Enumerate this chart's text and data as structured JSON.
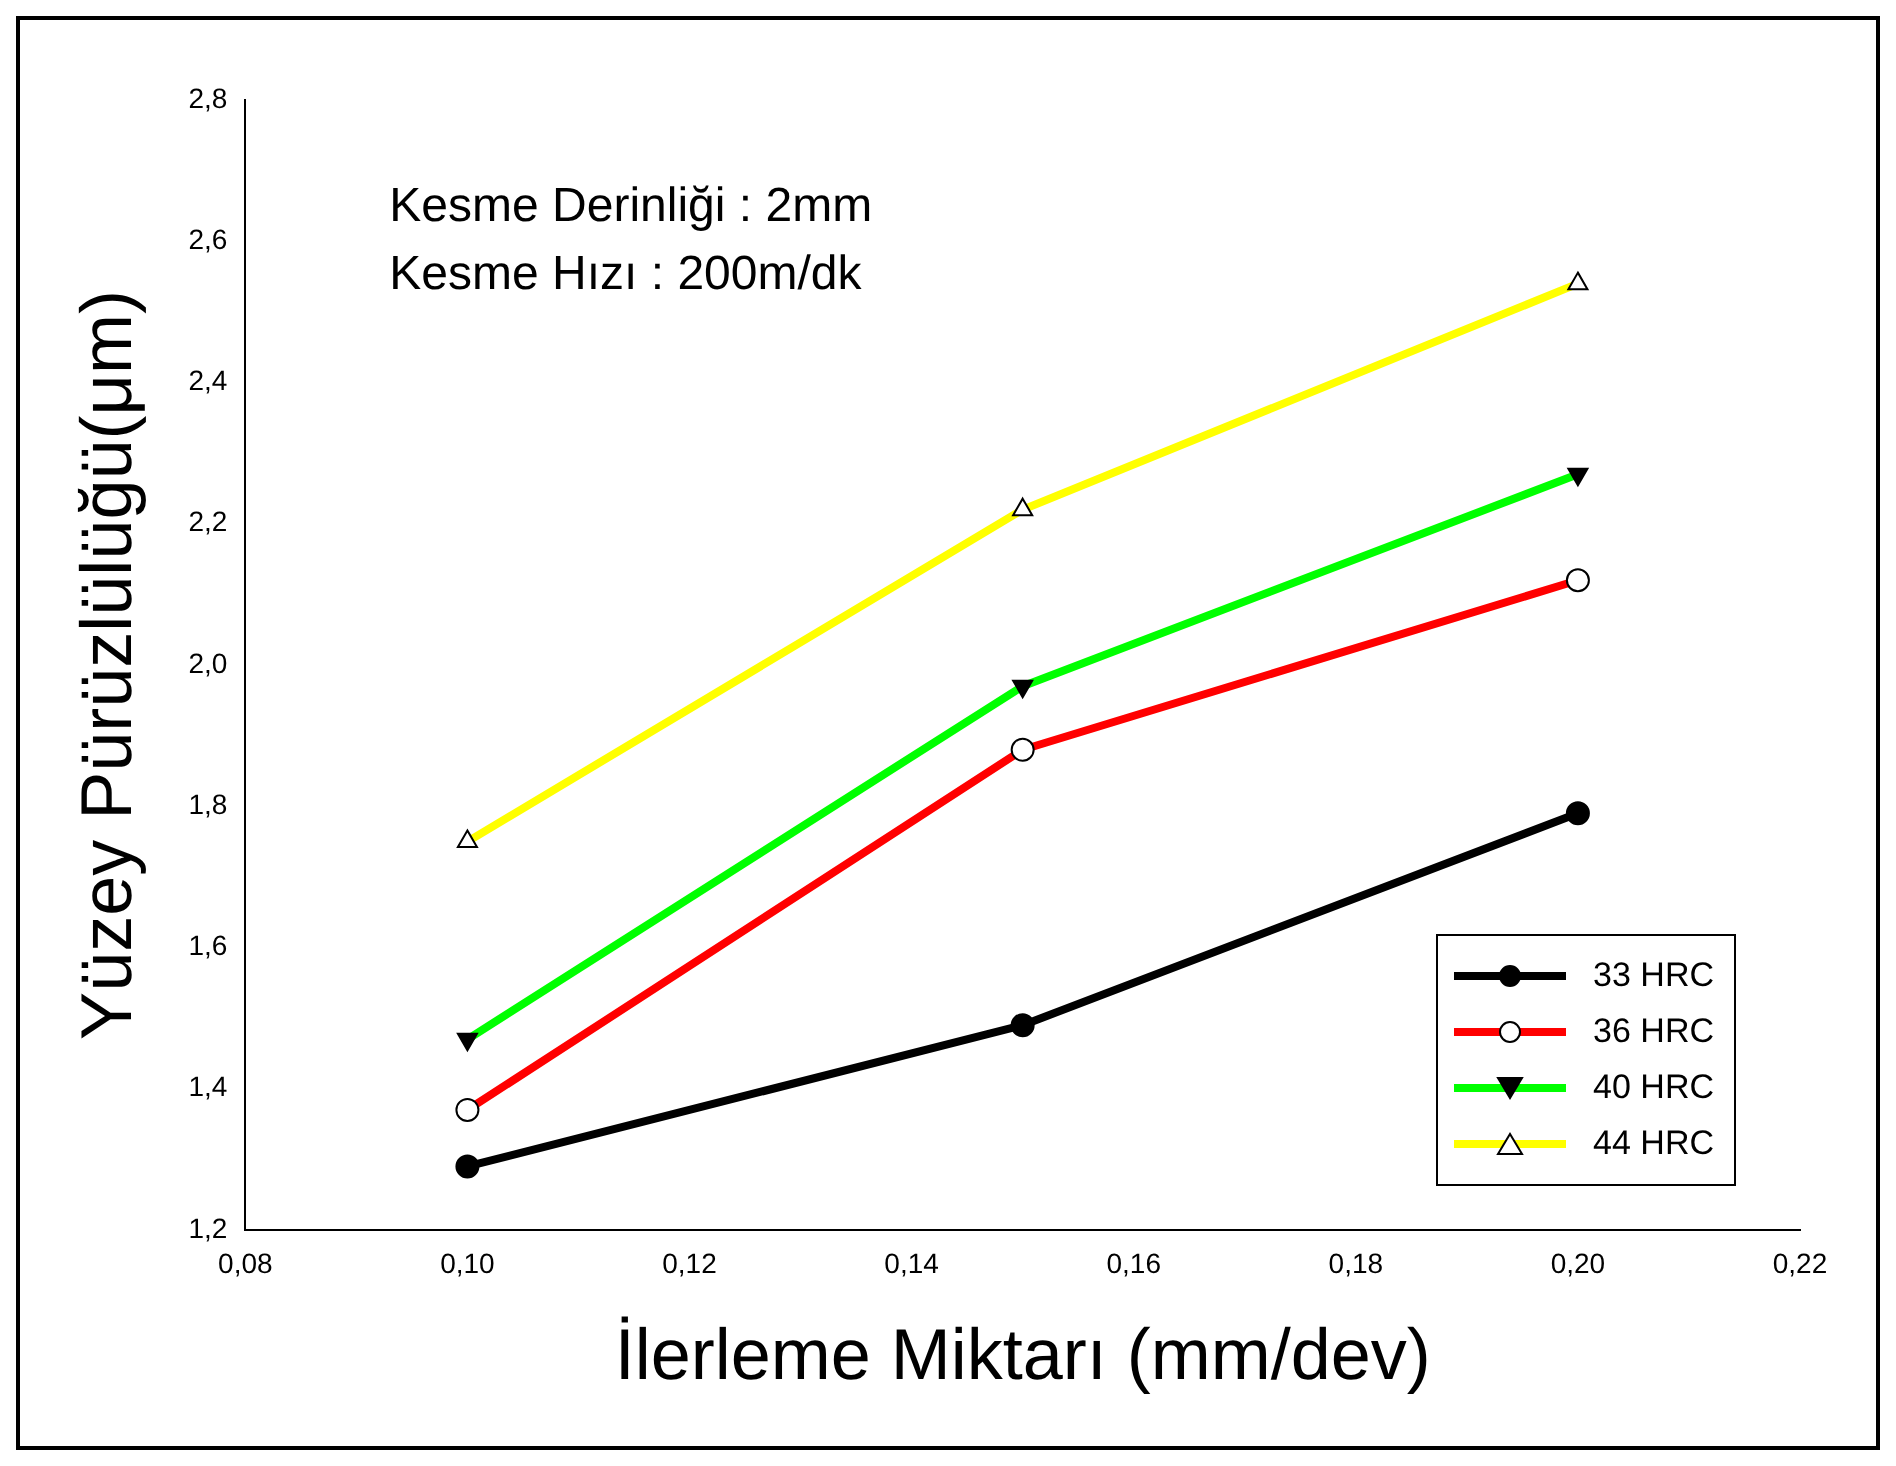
{
  "chart_data": {
    "type": "line",
    "xlabel": "İlerleme Miktarı (mm/dev)",
    "ylabel": "Yüzey Pürüzlülüğü(μm)",
    "annotations": [
      "Kesme Derinliği : 2mm",
      "Kesme Hızı : 200m/dk"
    ],
    "x": [
      0.1,
      0.15,
      0.2
    ],
    "series": [
      {
        "name": "33 HRC",
        "color": "#000000",
        "marker": "circle",
        "values": [
          1.29,
          1.49,
          1.79
        ]
      },
      {
        "name": "36 HRC",
        "color": "#ff0000",
        "marker": "circle",
        "values": [
          1.37,
          1.88,
          2.12
        ]
      },
      {
        "name": "40 HRC",
        "color": "#00ff00",
        "marker": "triangle",
        "values": [
          1.47,
          1.97,
          2.27
        ]
      },
      {
        "name": "44 HRC",
        "color": "#ffff00",
        "marker": "triangle",
        "values": [
          1.75,
          2.22,
          2.54
        ]
      }
    ],
    "xlim": [
      0.08,
      0.22
    ],
    "xticks": [
      {
        "value": 0.08,
        "label": "0,08"
      },
      {
        "value": 0.1,
        "label": "0,10"
      },
      {
        "value": 0.12,
        "label": "0,12"
      },
      {
        "value": 0.14,
        "label": "0,14"
      },
      {
        "value": 0.16,
        "label": "0,16"
      },
      {
        "value": 0.18,
        "label": "0,18"
      },
      {
        "value": 0.2,
        "label": "0,20"
      },
      {
        "value": 0.22,
        "label": "0,22"
      }
    ],
    "ylim": [
      1.2,
      2.8
    ],
    "yticks": [
      {
        "value": 1.2,
        "label": "1,2"
      },
      {
        "value": 1.4,
        "label": "1,4"
      },
      {
        "value": 1.6,
        "label": "1,6"
      },
      {
        "value": 1.8,
        "label": "1,8"
      },
      {
        "value": 2.0,
        "label": "2,0"
      },
      {
        "value": 2.2,
        "label": "2,2"
      },
      {
        "value": 2.4,
        "label": "2,4"
      },
      {
        "value": 2.6,
        "label": "2,6"
      },
      {
        "value": 2.8,
        "label": "2,8"
      }
    ],
    "grid": false,
    "legend": "bottom right",
    "line_style": "solid"
  }
}
